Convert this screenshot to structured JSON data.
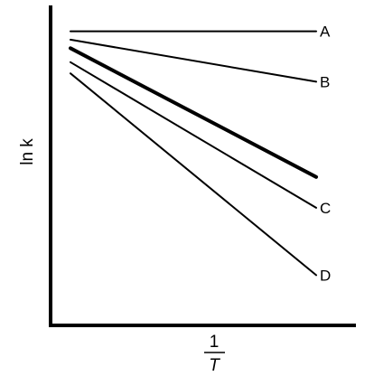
{
  "chart_data": {
    "type": "line",
    "xlabel": {
      "numerator": "1",
      "denominator": "T"
    },
    "ylabel": "ln k",
    "xlim": [
      0,
      1
    ],
    "ylim": [
      0,
      1
    ],
    "grid": false,
    "legend": "none",
    "series": [
      {
        "name": "A",
        "x": [
          0.0,
          1.0
        ],
        "values": [
          0.985,
          0.985
        ],
        "style": "thin",
        "label_shown": true
      },
      {
        "name": "B",
        "x": [
          0.0,
          1.0
        ],
        "values": [
          0.955,
          0.805
        ],
        "style": "thin",
        "label_shown": true
      },
      {
        "name": "",
        "x": [
          0.0,
          1.0
        ],
        "values": [
          0.925,
          0.465
        ],
        "style": "thick",
        "label_shown": false
      },
      {
        "name": "C",
        "x": [
          0.0,
          1.0
        ],
        "values": [
          0.875,
          0.355
        ],
        "style": "thin",
        "label_shown": true
      },
      {
        "name": "D",
        "x": [
          0.0,
          1.0
        ],
        "values": [
          0.835,
          0.115
        ],
        "style": "thin",
        "label_shown": true
      }
    ]
  }
}
